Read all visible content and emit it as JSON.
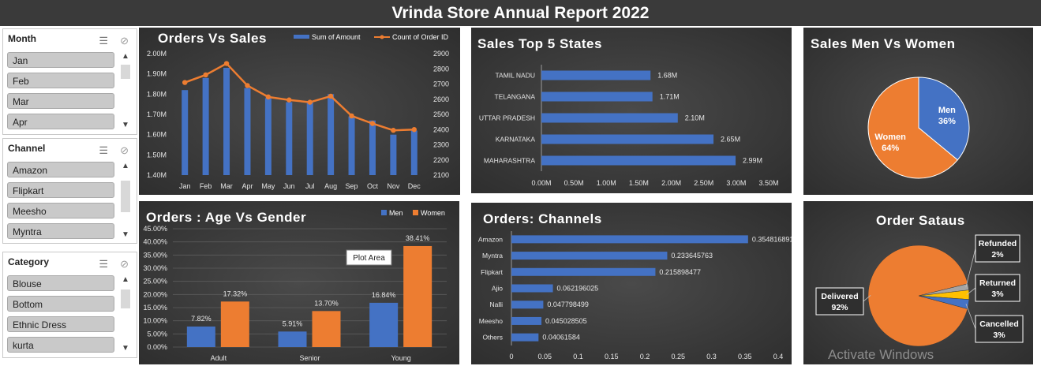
{
  "report_title": "Vrinda Store Annual Report 2022",
  "watermark": "Activate Windows",
  "slicers": [
    {
      "title": "Month",
      "items": [
        "Jan",
        "Feb",
        "Mar",
        "Apr"
      ]
    },
    {
      "title": "Channel",
      "items": [
        "Amazon",
        "Flipkart",
        "Meesho",
        "Myntra"
      ]
    },
    {
      "title": "Category",
      "items": [
        "Blouse",
        "Bottom",
        "Ethnic Dress",
        "kurta"
      ]
    }
  ],
  "slicer_icons": {
    "multi_select": "multi-select-icon",
    "clear_filter": "clear-filter-icon",
    "scroll_up": "▲",
    "scroll_down": "▼"
  },
  "colors": {
    "blue": "#4472c4",
    "orange": "#ed7d31",
    "gray": "#a5a5a5",
    "yellow": "#ffc000",
    "panel_bg": "#3a3a3a"
  },
  "tooltip": "Plot Area",
  "chart_data": [
    {
      "id": "orders_vs_sales",
      "type": "bar",
      "title": "Orders Vs Sales",
      "categories": [
        "Jan",
        "Feb",
        "Mar",
        "Apr",
        "May",
        "Jun",
        "Jul",
        "Aug",
        "Sep",
        "Oct",
        "Nov",
        "Dec"
      ],
      "series": [
        {
          "name": "Sum of Amount",
          "type": "bar",
          "axis": "left",
          "values": [
            1.82,
            1.88,
            1.93,
            1.83,
            1.78,
            1.76,
            1.76,
            1.8,
            1.69,
            1.67,
            1.6,
            1.62
          ]
        },
        {
          "name": "Count of Order ID",
          "type": "line",
          "axis": "right",
          "values": [
            2710,
            2760,
            2835,
            2690,
            2615,
            2595,
            2580,
            2620,
            2490,
            2440,
            2395,
            2400
          ]
        }
      ],
      "left_ticks": [
        "2.00M",
        "1.90M",
        "1.80M",
        "1.70M",
        "1.60M",
        "1.50M",
        "1.40M"
      ],
      "right_ticks": [
        "2900",
        "2800",
        "2700",
        "2600",
        "2500",
        "2400",
        "2300",
        "2200",
        "2100"
      ],
      "ylim_left": [
        1.4,
        2.0
      ],
      "ylim_right": [
        2100,
        2900
      ],
      "legend": "top-right"
    },
    {
      "id": "top_states",
      "type": "bar",
      "orientation": "horizontal",
      "title": "Sales Top 5 States",
      "categories": [
        "TAMIL NADU",
        "TELANGANA",
        "UTTAR PRADESH",
        "KARNATAKA",
        "MAHARASHTRA"
      ],
      "values": [
        1.68,
        1.71,
        2.1,
        2.65,
        2.99
      ],
      "data_labels": [
        "1.68M",
        "1.71M",
        "2.10M",
        "2.65M",
        "2.99M"
      ],
      "xlim": [
        0,
        3.5
      ],
      "x_ticks": [
        "0.00M",
        "0.50M",
        "1.00M",
        "1.50M",
        "2.00M",
        "2.50M",
        "3.00M",
        "3.50M"
      ]
    },
    {
      "id": "men_vs_women",
      "type": "pie",
      "title": "Sales Men Vs Women",
      "slices": [
        {
          "label": "Men",
          "pct_label": "36%",
          "value": 36
        },
        {
          "label": "Women",
          "pct_label": "64%",
          "value": 64
        }
      ]
    },
    {
      "id": "age_vs_gender",
      "type": "bar",
      "title": "Orders : Age Vs Gender",
      "categories": [
        "Adult",
        "Senior",
        "Young"
      ],
      "series": [
        {
          "name": "Men",
          "values": [
            7.82,
            5.91,
            16.84
          ],
          "labels": [
            "7.82%",
            "5.91%",
            "16.84%"
          ]
        },
        {
          "name": "Women",
          "values": [
            17.32,
            13.7,
            38.41
          ],
          "labels": [
            "17.32%",
            "13.70%",
            "38.41%"
          ]
        }
      ],
      "y_ticks": [
        "45.00%",
        "40.00%",
        "35.00%",
        "30.00%",
        "25.00%",
        "20.00%",
        "15.00%",
        "10.00%",
        "5.00%",
        "0.00%"
      ],
      "ylim": [
        0,
        45
      ],
      "legend": "top-right"
    },
    {
      "id": "channels",
      "type": "bar",
      "orientation": "horizontal",
      "title": "Orders: Channels",
      "categories": [
        "Amazon",
        "Myntra",
        "Flipkart",
        "Ajio",
        "Nalli",
        "Meesho",
        "Others"
      ],
      "values": [
        0.354816891,
        0.233645763,
        0.215898477,
        0.062196025,
        0.047798499,
        0.045028505,
        0.04061584
      ],
      "data_labels": [
        "0.354816891",
        "0.233645763",
        "0.215898477",
        "0.062196025",
        "0.047798499",
        "0.045028505",
        "0.04061584"
      ],
      "xlim": [
        0,
        0.4
      ],
      "x_ticks": [
        "0",
        "0.05",
        "0.1",
        "0.15",
        "0.2",
        "0.25",
        "0.3",
        "0.35",
        "0.4"
      ]
    },
    {
      "id": "order_status",
      "type": "pie",
      "title": "Order Sataus",
      "slices": [
        {
          "label": "Delivered",
          "pct_label": "92%",
          "value": 92
        },
        {
          "label": "Refunded",
          "pct_label": "2%",
          "value": 2
        },
        {
          "label": "Returned",
          "pct_label": "3%",
          "value": 3
        },
        {
          "label": "Cancelled",
          "pct_label": "3%",
          "value": 3
        }
      ]
    }
  ]
}
